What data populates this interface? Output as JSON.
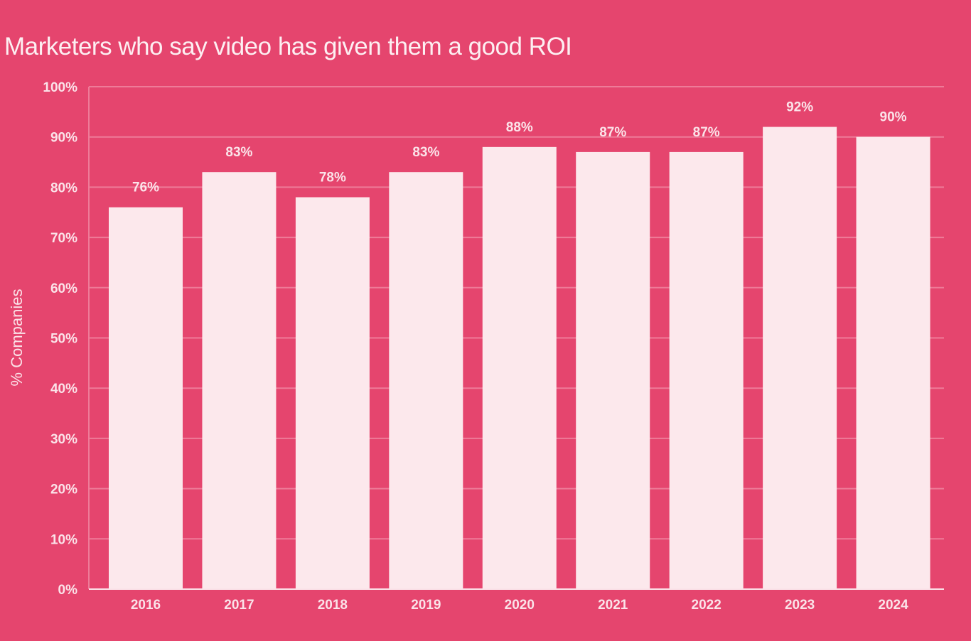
{
  "chart_data": {
    "type": "bar",
    "title": "Marketers who say video has given them a good ROI",
    "xlabel": "",
    "ylabel": "% Companies",
    "categories": [
      "2016",
      "2017",
      "2018",
      "2019",
      "2020",
      "2021",
      "2022",
      "2023",
      "2024"
    ],
    "values": [
      76,
      83,
      78,
      83,
      88,
      87,
      87,
      92,
      90
    ],
    "data_labels": [
      "76%",
      "83%",
      "78%",
      "83%",
      "88%",
      "87%",
      "87%",
      "92%",
      "90%"
    ],
    "ylim": [
      0,
      100
    ],
    "yticks": [
      0,
      10,
      20,
      30,
      40,
      50,
      60,
      70,
      80,
      90,
      100
    ],
    "ytick_labels": [
      "0%",
      "10%",
      "20%",
      "30%",
      "40%",
      "50%",
      "60%",
      "70%",
      "80%",
      "90%",
      "100%"
    ],
    "grid": true,
    "colors": {
      "background": "#E5456E",
      "bar": "#FCE8EC",
      "grid": "#EE7B98",
      "text": "#FBE3E9"
    }
  }
}
